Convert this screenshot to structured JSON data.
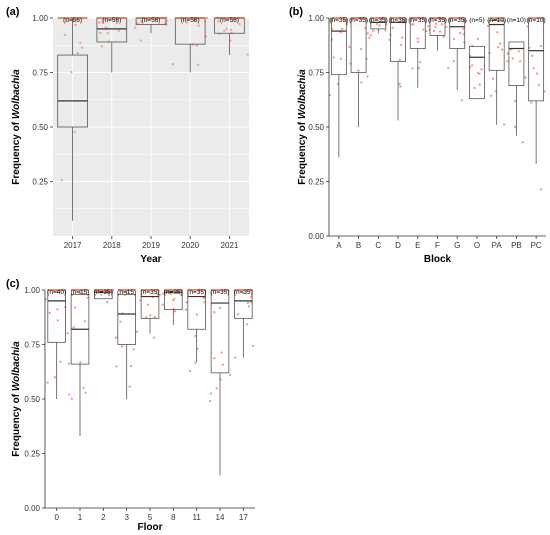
{
  "chart_data": [
    {
      "panel": "(a)",
      "type": "boxplot",
      "xlabel": "Year",
      "ylabel_prefix": "Frequency of ",
      "ylabel_italic": "Wolbachia",
      "ylim": [
        0,
        1
      ],
      "yticks": [
        "0.25",
        "0.50",
        "0.75",
        "1.00"
      ],
      "grid": true,
      "categories": [
        "2017",
        "2018",
        "2019",
        "2020",
        "2021"
      ],
      "n_labels": [
        "(n=56)",
        "(n=56)",
        "(n=56)",
        "(n=56)",
        "(n=56)"
      ],
      "boxes": [
        {
          "q1": 0.5,
          "median": 0.62,
          "q3": 0.83,
          "lo": 0.07,
          "hi": 1.0
        },
        {
          "q1": 0.89,
          "median": 0.95,
          "q3": 1.0,
          "lo": 0.75,
          "hi": 1.0
        },
        {
          "q1": 0.97,
          "median": 1.0,
          "q3": 1.0,
          "lo": 0.93,
          "hi": 1.0
        },
        {
          "q1": 0.88,
          "median": 1.0,
          "q3": 1.0,
          "lo": 0.75,
          "hi": 1.0
        },
        {
          "q1": 0.93,
          "median": 1.0,
          "q3": 1.0,
          "lo": 0.83,
          "hi": 1.0
        }
      ]
    },
    {
      "panel": "(b)",
      "type": "boxplot",
      "xlabel": "Block",
      "ylabel_prefix": "Frequency of ",
      "ylabel_italic": "Wolbachia",
      "ylim": [
        0,
        1
      ],
      "yticks": [
        "0.00",
        "0.25",
        "0.50",
        "0.75",
        "1.00"
      ],
      "grid": false,
      "categories": [
        "A",
        "B",
        "C",
        "D",
        "E",
        "F",
        "G",
        "O",
        "PA",
        "PB",
        "PC"
      ],
      "n_labels": [
        "(n=35)",
        "(n=35)",
        "(n=35)",
        "(n=35)",
        "(n=35)",
        "(n=35)",
        "(n=35)",
        "(n=5)",
        "(n=10)",
        "(n=10)",
        "(n=10)"
      ],
      "boxes": [
        {
          "q1": 0.74,
          "median": 0.94,
          "q3": 1.0,
          "lo": 0.36,
          "hi": 1.0
        },
        {
          "q1": 0.75,
          "median": 1.0,
          "q3": 1.0,
          "lo": 0.5,
          "hi": 1.0
        },
        {
          "q1": 0.95,
          "median": 0.98,
          "q3": 1.0,
          "lo": 0.93,
          "hi": 1.0
        },
        {
          "q1": 0.8,
          "median": 0.98,
          "q3": 1.0,
          "lo": 0.53,
          "hi": 1.0
        },
        {
          "q1": 0.86,
          "median": 1.0,
          "q3": 1.0,
          "lo": 0.68,
          "hi": 1.0
        },
        {
          "q1": 0.92,
          "median": 1.0,
          "q3": 1.0,
          "lo": 0.85,
          "hi": 1.0
        },
        {
          "q1": 0.86,
          "median": 0.96,
          "q3": 1.0,
          "lo": 0.67,
          "hi": 1.0
        },
        {
          "q1": 0.63,
          "median": 0.82,
          "q3": 0.87,
          "lo": 0.63,
          "hi": 0.87
        },
        {
          "q1": 0.76,
          "median": 0.97,
          "q3": 0.99,
          "lo": 0.51,
          "hi": 1.0
        },
        {
          "q1": 0.69,
          "median": 0.86,
          "q3": 0.89,
          "lo": 0.46,
          "hi": 0.89
        },
        {
          "q1": 0.62,
          "median": 0.85,
          "q3": 1.0,
          "lo": 0.33,
          "hi": 1.0
        }
      ]
    },
    {
      "panel": "(c)",
      "type": "boxplot",
      "xlabel": "Floor",
      "ylabel_prefix": "Frequency of ",
      "ylabel_italic": "Wolbachia",
      "ylim": [
        0,
        1
      ],
      "yticks": [
        "0.00",
        "0.25",
        "0.50",
        "0.75",
        "1.00"
      ],
      "grid": false,
      "categories": [
        "0",
        "1",
        "2",
        "3",
        "5",
        "8",
        "11",
        "14",
        "17"
      ],
      "n_labels": [
        "(n=40)",
        "(n=15)",
        "(n=35)",
        "(n=15)",
        "(n=35)",
        "(n=35)",
        "(n=35)",
        "(n=35)",
        "(n=35)"
      ],
      "boxes": [
        {
          "q1": 0.76,
          "median": 0.95,
          "q3": 1.0,
          "lo": 0.5,
          "hi": 1.0
        },
        {
          "q1": 0.66,
          "median": 0.82,
          "q3": 0.98,
          "lo": 0.33,
          "hi": 1.0
        },
        {
          "q1": 0.96,
          "median": 0.99,
          "q3": 1.0,
          "lo": 0.96,
          "hi": 1.0
        },
        {
          "q1": 0.75,
          "median": 0.89,
          "q3": 0.98,
          "lo": 0.5,
          "hi": 1.0
        },
        {
          "q1": 0.87,
          "median": 0.97,
          "q3": 1.0,
          "lo": 0.8,
          "hi": 1.0
        },
        {
          "q1": 0.91,
          "median": 0.99,
          "q3": 1.0,
          "lo": 0.84,
          "hi": 1.0
        },
        {
          "q1": 0.82,
          "median": 0.97,
          "q3": 1.0,
          "lo": 0.67,
          "hi": 1.0
        },
        {
          "q1": 0.62,
          "median": 0.94,
          "q3": 1.0,
          "lo": 0.15,
          "hi": 1.0
        },
        {
          "q1": 0.87,
          "median": 0.95,
          "q3": 1.0,
          "lo": 0.69,
          "hi": 1.0
        }
      ]
    }
  ],
  "colors": {
    "panel_a_background": "#ebebeb",
    "grid_line": "#ffffff",
    "box_stroke": "#555555",
    "median_line": "#333333",
    "max_line": "#e8603c",
    "jitter_point": "#f2a090"
  }
}
